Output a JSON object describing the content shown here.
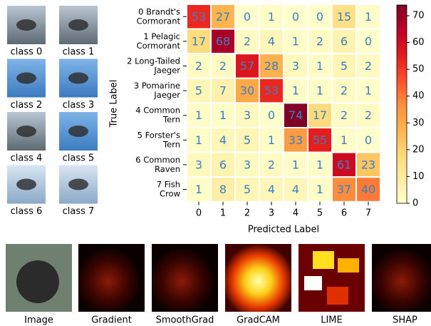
{
  "thumbnails": [
    "class 0",
    "class 1",
    "class 2",
    "class 3",
    "class 4",
    "class 5",
    "class 6",
    "class 7"
  ],
  "methods": [
    "Image",
    "Gradient",
    "SmoothGrad",
    "GradCAM",
    "LIME",
    "SHAP"
  ],
  "chart_data": {
    "type": "heatmap",
    "x_label": "Predicted Label",
    "y_label": "True Label",
    "x_categories": [
      "0",
      "1",
      "2",
      "3",
      "4",
      "5",
      "6",
      "7"
    ],
    "y_categories": [
      [
        "0 Brandt's",
        "Cormorant"
      ],
      [
        "1 Pelagic",
        "Cormorant"
      ],
      [
        "2 Long-Tailed",
        "Jaeger"
      ],
      [
        "3 Pomarine",
        "Jaeger"
      ],
      [
        "4 Common",
        "Tern"
      ],
      [
        "5 Forster's",
        "Tern"
      ],
      [
        "6 Common",
        "Raven"
      ],
      [
        "7 Fish",
        "Crow"
      ]
    ],
    "values": [
      [
        53,
        27,
        0,
        1,
        0,
        0,
        15,
        1
      ],
      [
        17,
        68,
        2,
        4,
        1,
        2,
        6,
        0
      ],
      [
        2,
        2,
        57,
        28,
        3,
        1,
        5,
        2
      ],
      [
        5,
        7,
        30,
        53,
        1,
        1,
        2,
        1
      ],
      [
        1,
        1,
        3,
        0,
        74,
        17,
        2,
        2
      ],
      [
        1,
        4,
        5,
        1,
        33,
        55,
        1,
        0
      ],
      [
        3,
        6,
        3,
        2,
        1,
        1,
        61,
        23
      ],
      [
        1,
        8,
        5,
        4,
        4,
        1,
        37,
        40
      ]
    ],
    "colormap": "YlOrRd",
    "text_color": "#3b7fc4",
    "zlim": [
      0,
      74
    ],
    "zticks": [
      0,
      10,
      20,
      30,
      40,
      50,
      60,
      70
    ]
  }
}
